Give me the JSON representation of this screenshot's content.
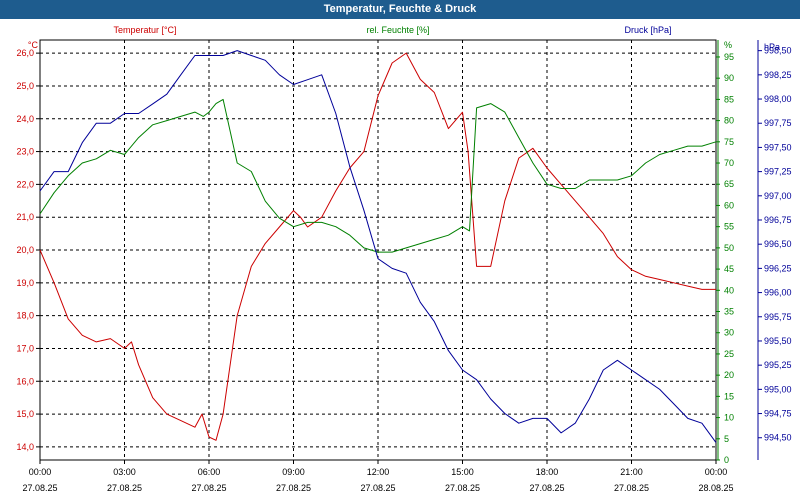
{
  "title": "Temperatur, Feuchte & Druck",
  "colors": {
    "temperature": "#cc0000",
    "humidity": "#008000",
    "pressure": "#000099",
    "titlebar": "#1e5c8e",
    "grid": "#000000"
  },
  "chart_data": {
    "type": "line",
    "title": "Temperatur, Feuchte & Druck",
    "xlabel": "",
    "x_range_hours": [
      0,
      24
    ],
    "x_ticks": [
      {
        "time": "00:00",
        "date": "27.08.25"
      },
      {
        "time": "03:00",
        "date": "27.08.25"
      },
      {
        "time": "06:00",
        "date": "27.08.25"
      },
      {
        "time": "09:00",
        "date": "27.08.25"
      },
      {
        "time": "12:00",
        "date": "27.08.25"
      },
      {
        "time": "15:00",
        "date": "27.08.25"
      },
      {
        "time": "18:00",
        "date": "27.08.25"
      },
      {
        "time": "21:00",
        "date": "27.08.25"
      },
      {
        "time": "00:00",
        "date": "28.08.25"
      }
    ],
    "axes": {
      "left": {
        "unit": "°C",
        "ylim": [
          13.6,
          26.4
        ],
        "ticks": [
          "14,0",
          "15,0",
          "16,0",
          "17,0",
          "18,0",
          "19,0",
          "20,0",
          "21,0",
          "22,0",
          "23,0",
          "24,0",
          "25,0",
          "26,0"
        ]
      },
      "right1": {
        "unit": "%",
        "ylim": [
          0,
          99
        ],
        "ticks": [
          "0",
          "5",
          "10",
          "15",
          "20",
          "25",
          "30",
          "35",
          "40",
          "45",
          "50",
          "55",
          "60",
          "65",
          "70",
          "75",
          "80",
          "85",
          "90",
          "95",
          "%"
        ]
      },
      "right2": {
        "unit": "hPa",
        "ylim": [
          994.27,
          998.61
        ],
        "ticks": [
          "994,50",
          "994,75",
          "995,00",
          "995,25",
          "995,50",
          "995,75",
          "996,00",
          "996,25",
          "996,50",
          "996,75",
          "997,00",
          "997,25",
          "997,50",
          "997,75",
          "998,00",
          "998,25",
          "998,50",
          "hPa"
        ]
      }
    },
    "series": [
      {
        "name": "Temperatur [°C]",
        "axis": "left",
        "x": [
          0,
          0.5,
          1,
          1.5,
          2,
          2.5,
          3,
          3.25,
          3.5,
          4,
          4.5,
          5,
          5.5,
          5.75,
          6,
          6.25,
          6.5,
          7,
          7.5,
          8,
          8.5,
          9,
          9.25,
          9.5,
          10,
          10.5,
          11,
          11.5,
          12,
          12.5,
          13,
          13.5,
          14,
          14.5,
          15,
          15.2,
          15.5,
          16,
          16.5,
          17,
          17.5,
          18,
          18.5,
          19,
          19.5,
          20,
          20.5,
          21,
          21.5,
          22,
          22.5,
          23,
          23.5,
          24
        ],
        "values": [
          20.0,
          19.0,
          17.9,
          17.4,
          17.2,
          17.3,
          17.0,
          17.2,
          16.5,
          15.5,
          15.0,
          14.8,
          14.6,
          15.0,
          14.3,
          14.2,
          15.0,
          18.0,
          19.5,
          20.2,
          20.7,
          21.2,
          21.0,
          20.7,
          21.0,
          21.8,
          22.5,
          23.0,
          24.7,
          25.7,
          26.0,
          25.2,
          24.8,
          23.7,
          24.2,
          23.0,
          19.5,
          19.5,
          21.5,
          22.8,
          23.1,
          22.5,
          22.0,
          21.5,
          21.0,
          20.5,
          19.8,
          19.4,
          19.2,
          19.1,
          19.0,
          18.9,
          18.8,
          18.8
        ]
      },
      {
        "name": "rel. Feuchte [%]",
        "axis": "right1",
        "x": [
          0,
          0.5,
          1,
          1.5,
          2,
          2.5,
          3,
          3.5,
          4,
          4.5,
          5,
          5.5,
          5.8,
          6,
          6.25,
          6.5,
          7,
          7.5,
          8,
          8.5,
          9,
          9.5,
          10,
          10.5,
          11,
          11.5,
          12,
          12.5,
          13,
          13.5,
          14,
          14.5,
          15,
          15.25,
          15.5,
          16,
          16.5,
          17,
          17.5,
          18,
          18.5,
          19,
          19.5,
          20,
          20.5,
          21,
          21.5,
          22,
          22.5,
          23,
          23.5,
          24
        ],
        "values": [
          58,
          63,
          67,
          70,
          71,
          73,
          72,
          76,
          79,
          80,
          81,
          82,
          81,
          82,
          84,
          85,
          70,
          68,
          61,
          57,
          55,
          56,
          56,
          55,
          53,
          50,
          49,
          49,
          50,
          51,
          52,
          53,
          55,
          54,
          83,
          84,
          82,
          76,
          70,
          65,
          64,
          64,
          66,
          66,
          66,
          67,
          70,
          72,
          73,
          74,
          74,
          75
        ]
      },
      {
        "name": "Druck [hPa]",
        "axis": "right2",
        "x": [
          0,
          0.5,
          1,
          1.5,
          2,
          2.5,
          3,
          3.5,
          4,
          4.5,
          5,
          5.5,
          6,
          6.5,
          7,
          7.5,
          8,
          8.5,
          9,
          9.5,
          10,
          10.5,
          11,
          11.5,
          12,
          12.5,
          13,
          13.5,
          14,
          14.5,
          15,
          15.5,
          16,
          16.5,
          17,
          17.5,
          18,
          18.5,
          19,
          19.5,
          20,
          20.5,
          21,
          21.5,
          22,
          22.5,
          23,
          23.5,
          24
        ],
        "values": [
          997.05,
          997.25,
          997.25,
          997.55,
          997.75,
          997.75,
          997.85,
          997.85,
          997.95,
          998.05,
          998.25,
          998.45,
          998.45,
          998.45,
          998.5,
          998.45,
          998.4,
          998.25,
          998.15,
          998.2,
          998.25,
          997.85,
          997.3,
          996.85,
          996.35,
          996.25,
          996.2,
          995.9,
          995.7,
          995.4,
          995.2,
          995.1,
          994.9,
          994.75,
          994.65,
          994.7,
          994.7,
          994.55,
          994.65,
          994.9,
          995.2,
          995.3,
          995.2,
          995.1,
          995.0,
          994.85,
          994.7,
          994.65,
          994.45
        ]
      }
    ],
    "legend": [
      {
        "label": "Temperatur [°C]",
        "position": "top-left"
      },
      {
        "label": "rel. Feuchte [%]",
        "position": "top-center"
      },
      {
        "label": "Druck [hPa]",
        "position": "top-right"
      }
    ],
    "grid": true
  }
}
